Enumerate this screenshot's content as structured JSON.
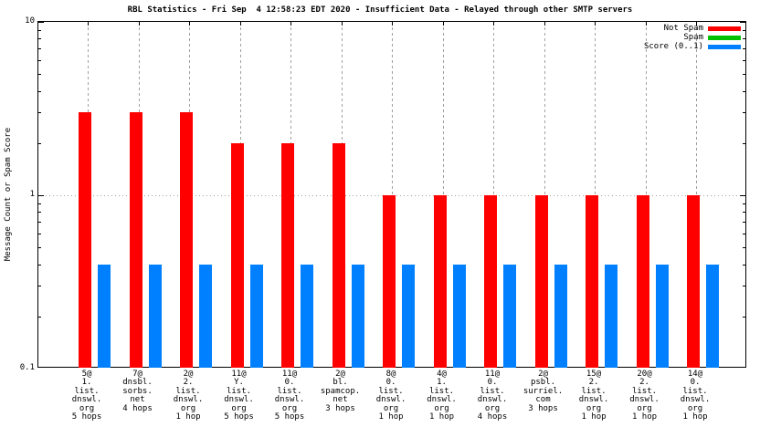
{
  "chart_data": {
    "type": "bar",
    "title": "RBL Statistics - Fri Sep  4 12:58:23 EDT 2020 - Insufficient Data - Relayed through other SMTP servers",
    "ylabel": "Message Count or Spam Score",
    "yscale": "log",
    "ylim": [
      0.1,
      10
    ],
    "yticks": [
      {
        "value": 10,
        "label": "10"
      },
      {
        "value": 1,
        "label": "1"
      },
      {
        "value": 0.1,
        "label": "0.1"
      }
    ],
    "grid": {
      "vertical_dashed_per_category": true,
      "horizontal_dotted_at": 1
    },
    "legend_position": "top-right-inside",
    "categories": [
      [
        "5@",
        "1.",
        "list.",
        "dnswl.",
        "org",
        "5 hops"
      ],
      [
        "7@",
        "dnsbl.",
        "sorbs.",
        "net",
        "4 hops"
      ],
      [
        "2@",
        "2.",
        "list.",
        "dnswl.",
        "org",
        "1 hop"
      ],
      [
        "11@",
        "Y.",
        "list.",
        "dnswl.",
        "org",
        "5 hops"
      ],
      [
        "11@",
        "0.",
        "list.",
        "dnswl.",
        "org",
        "5 hops"
      ],
      [
        "2@",
        "bl.",
        "spamcop.",
        "net",
        "3 hops"
      ],
      [
        "8@",
        "0.",
        "list.",
        "dnswl.",
        "org",
        "1 hop"
      ],
      [
        "4@",
        "1.",
        "list.",
        "dnswl.",
        "org",
        "1 hop"
      ],
      [
        "11@",
        "0.",
        "list.",
        "dnswl.",
        "org",
        "4 hops"
      ],
      [
        "2@",
        "psbl.",
        "surriel.",
        "com",
        "3 hops"
      ],
      [
        "15@",
        "2.",
        "list.",
        "dnswl.",
        "org",
        "1 hop"
      ],
      [
        "20@",
        "2.",
        "list.",
        "dnswl.",
        "org",
        "1 hop"
      ],
      [
        "14@",
        "0.",
        "list.",
        "dnswl.",
        "org",
        "1 hop"
      ]
    ],
    "series": [
      {
        "name": "Not Spam",
        "color": "#ff0000",
        "values": [
          3,
          3,
          3,
          2,
          2,
          2,
          1,
          1,
          1,
          1,
          1,
          1,
          1
        ]
      },
      {
        "name": "Spam",
        "color": "#00c000",
        "values": [
          0,
          0,
          0,
          0,
          0,
          0,
          0,
          0,
          0,
          0,
          0,
          0,
          0
        ]
      },
      {
        "name": "Score (0..1)",
        "color": "#0080ff",
        "values": [
          0.4,
          0.4,
          0.4,
          0.4,
          0.4,
          0.4,
          0.4,
          0.4,
          0.4,
          0.4,
          0.4,
          0.4,
          0.4
        ]
      }
    ]
  }
}
